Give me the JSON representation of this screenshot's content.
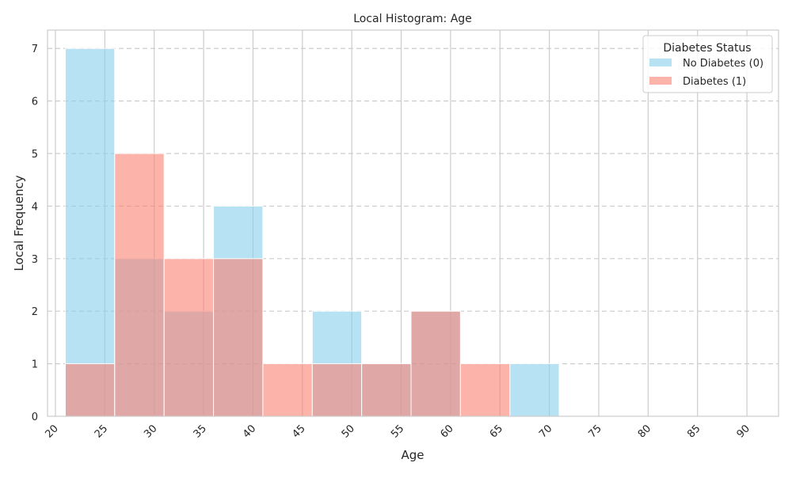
{
  "chart_data": {
    "type": "bar",
    "title": "Local Histogram: Age",
    "xlabel": "Age",
    "ylabel": "Local Frequency",
    "bin_edges": [
      21,
      26,
      31,
      36,
      41,
      46,
      51,
      56,
      61,
      66,
      71
    ],
    "xticks": [
      20,
      25,
      30,
      35,
      40,
      45,
      50,
      55,
      60,
      65,
      70,
      75,
      80,
      85,
      90
    ],
    "yticks": [
      0,
      1,
      2,
      3,
      4,
      5,
      6,
      7
    ],
    "xlim": [
      19.2,
      93.2
    ],
    "ylim": [
      0,
      7.35
    ],
    "grid": true,
    "legend": {
      "title": "Diabetes Status",
      "placement": "top-right"
    },
    "series": [
      {
        "name": "No Diabetes (0)",
        "color": "#87CEEB",
        "values": [
          7,
          3,
          2,
          4,
          0,
          2,
          1,
          2,
          0,
          1
        ]
      },
      {
        "name": "Diabetes (1)",
        "color": "#FA8072",
        "values": [
          1,
          5,
          3,
          3,
          1,
          1,
          1,
          2,
          1,
          0
        ]
      }
    ]
  }
}
